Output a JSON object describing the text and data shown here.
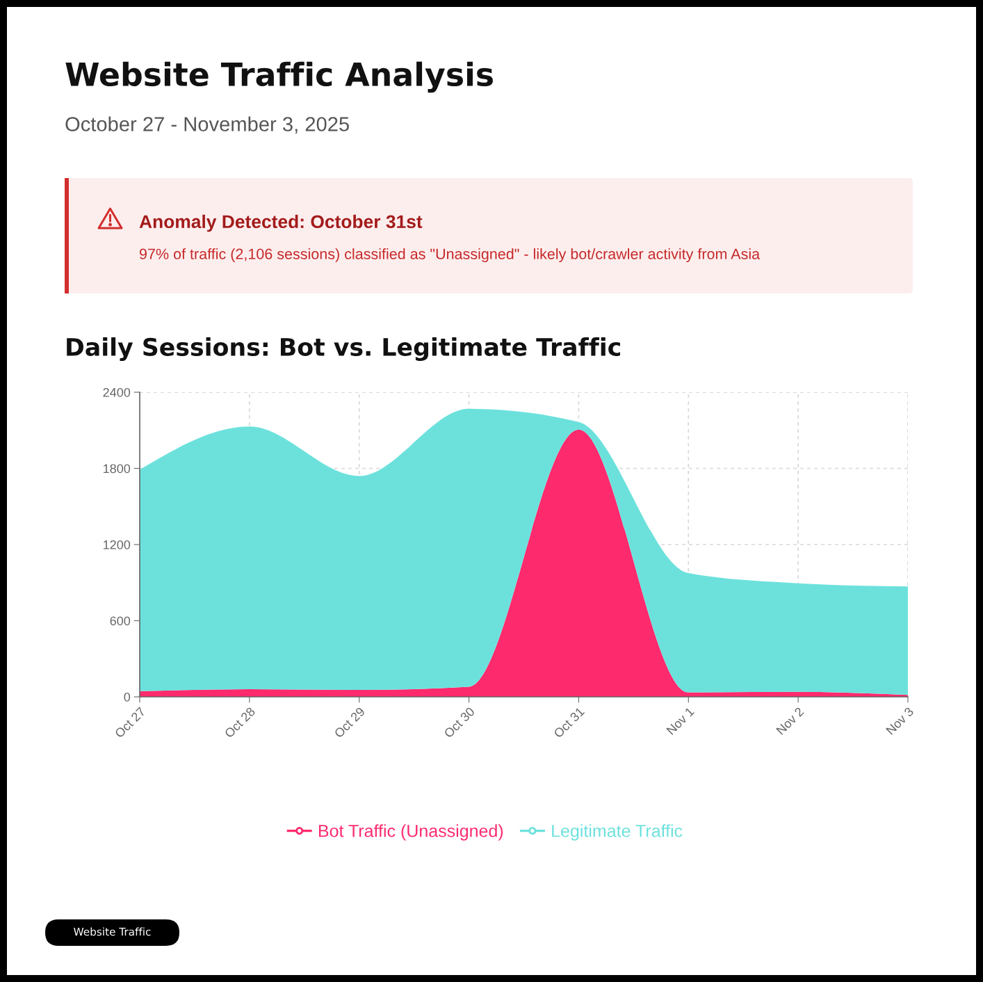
{
  "chart_data": {
    "type": "area",
    "title": "Website Traffic Analysis",
    "subtitle": "October 27 - November 3, 2025",
    "annotations": [
      "Anomaly Detected: October 31st",
      "97% of traffic (2,106 sessions) classified as \"Unassigned\" - likely bot/crawler activity from Asia",
      "Daily Sessions: Bot vs. Legitimate Traffic",
      "Website Traffic"
    ],
    "categories": [
      "Oct 27",
      "Oct 28",
      "Oct 29",
      "Oct 30",
      "Oct 31",
      "Nov 1",
      "Nov 2",
      "Nov 3"
    ],
    "stacked": true,
    "series": [
      {
        "name": "Bot Traffic (Unassigned)",
        "color": "#fd2a6e",
        "values": [
          45,
          60,
          55,
          80,
          2106,
          35,
          40,
          15
        ]
      },
      {
        "name": "Legitimate Traffic",
        "color": "#6ce1dc",
        "values": [
          1745,
          2070,
          1685,
          2190,
          60,
          940,
          855,
          855
        ]
      }
    ],
    "ylim": [
      0,
      2400
    ],
    "yticks": [
      0,
      600,
      1200,
      1800,
      2400
    ],
    "grid": true,
    "legend": "bottom"
  }
}
